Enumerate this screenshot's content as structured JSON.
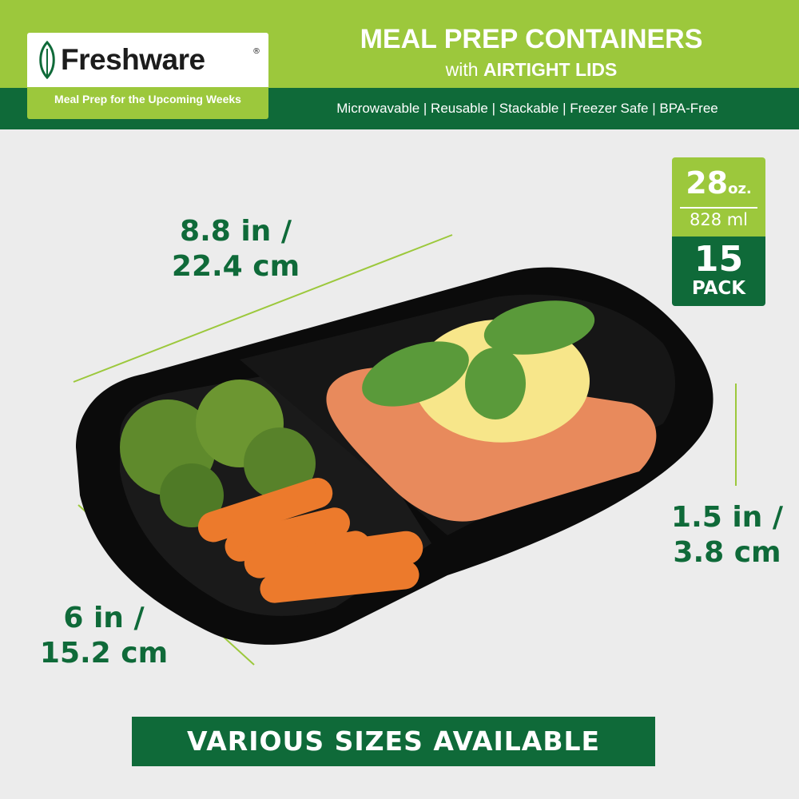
{
  "header": {
    "brand": "Freshware",
    "registered": "®",
    "tagline": "Meal Prep for the Upcoming Weeks",
    "title": "MEAL PREP CONTAINERS",
    "subtitle_prefix": "with",
    "subtitle_bold": "AIRTIGHT LIDS",
    "features": "Microwavable | Reusable | Stackable | Freezer Safe | BPA-Free"
  },
  "badge": {
    "capacity_oz": "28",
    "oz_unit": "oz.",
    "capacity_ml": "828 ml",
    "pack_count": "15",
    "pack_label": "PACK"
  },
  "dimensions": {
    "length_in": "8.8 in /",
    "length_cm": "22.4 cm",
    "width_in": "6 in /",
    "width_cm": "15.2 cm",
    "height_in": "1.5 in /",
    "height_cm": "3.8 cm"
  },
  "footer": {
    "banner": "VARIOUS SIZES AVAILABLE"
  },
  "colors": {
    "light_green": "#9cc83c",
    "dark_green": "#0f6a39",
    "background": "#ececec"
  }
}
